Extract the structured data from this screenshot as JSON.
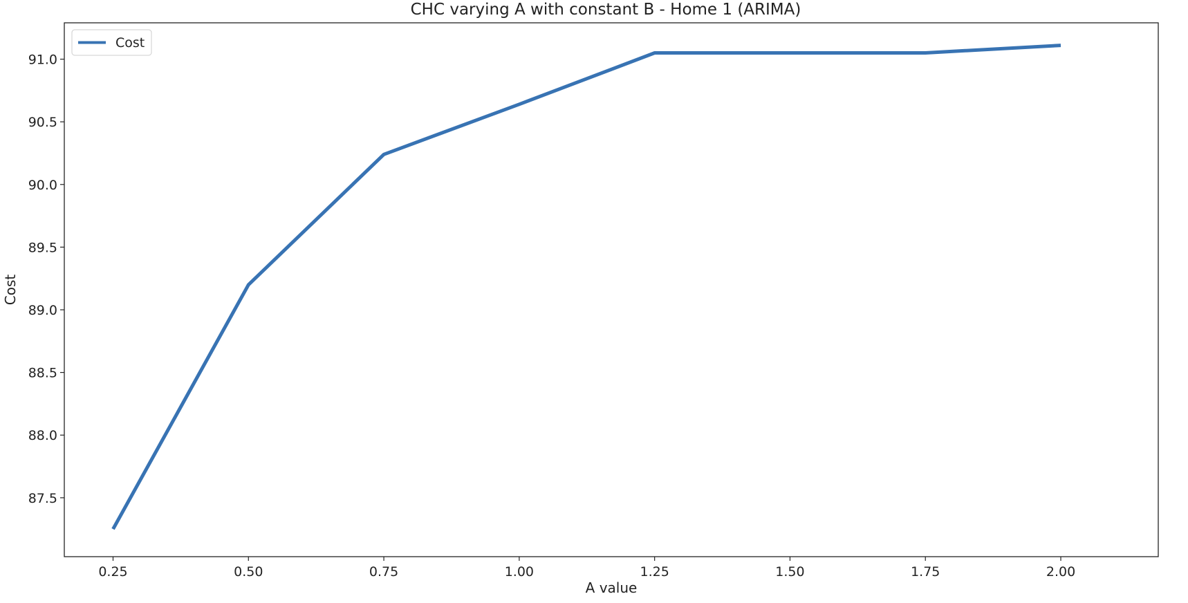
{
  "chart_data": {
    "type": "line",
    "title": "CHC varying A with constant B - Home 1 (ARIMA)",
    "xlabel": "A value",
    "ylabel": "Cost",
    "xlim": [
      0.16,
      2.18
    ],
    "ylim": [
      87.03,
      91.29
    ],
    "x_ticks": [
      "0.25",
      "0.50",
      "0.75",
      "1.00",
      "1.25",
      "1.50",
      "1.75",
      "2.00"
    ],
    "y_ticks": [
      "87.5",
      "88.0",
      "88.5",
      "89.0",
      "89.5",
      "90.0",
      "90.5",
      "91.0"
    ],
    "grid": false,
    "legend_position": "top-left",
    "series": [
      {
        "name": "Cost",
        "color": "#3873b3",
        "x": [
          0.25,
          0.5,
          0.75,
          1.0,
          1.25,
          1.5,
          1.75,
          2.0
        ],
        "y": [
          87.25,
          89.2,
          90.24,
          90.64,
          91.05,
          91.05,
          91.05,
          91.11
        ]
      }
    ]
  }
}
